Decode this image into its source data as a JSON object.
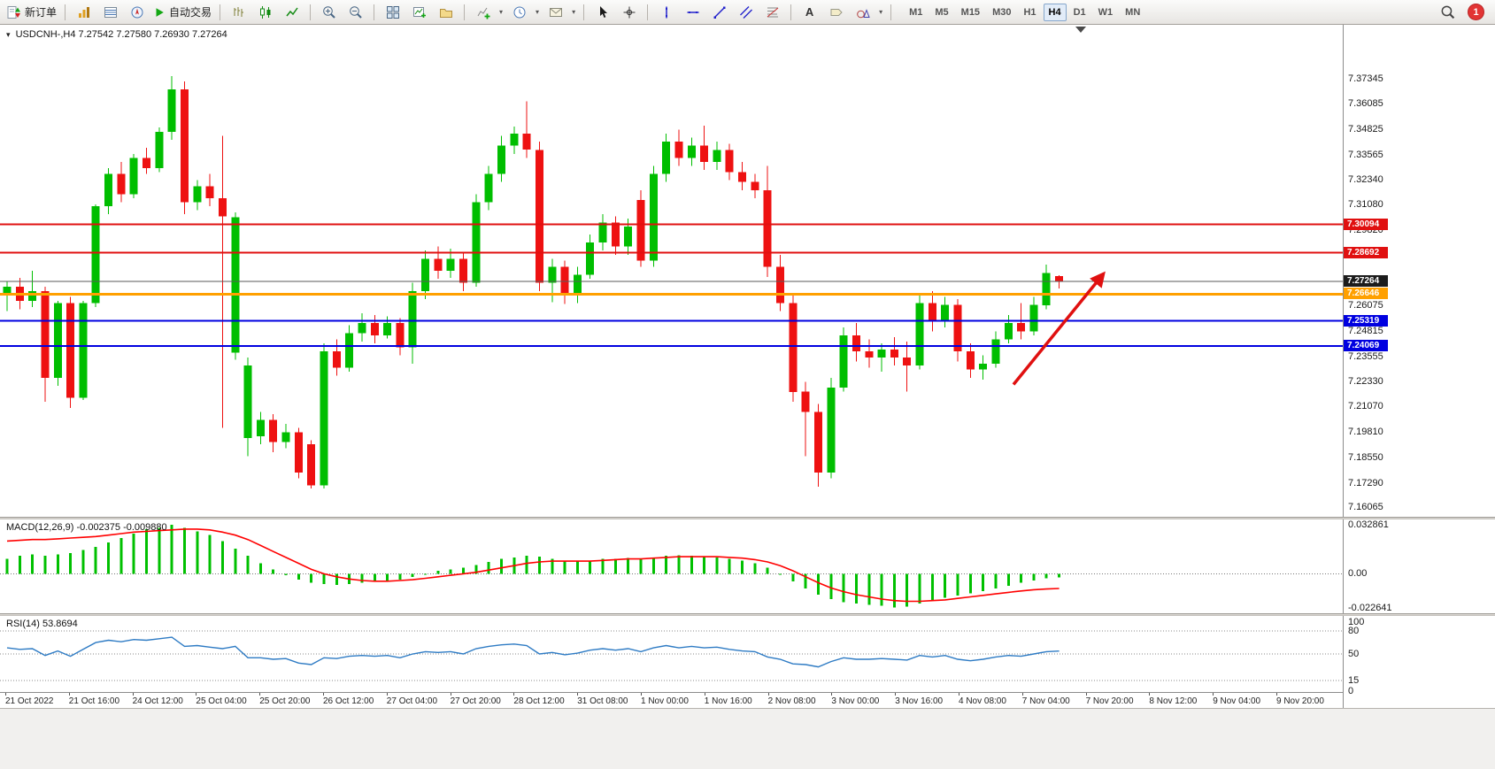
{
  "toolbar": {
    "new_order_label": "新订单",
    "autotrading_label": "自动交易",
    "text_tool_label": "A",
    "timeframes": [
      "M1",
      "M5",
      "M15",
      "M30",
      "H1",
      "H4",
      "D1",
      "W1",
      "MN"
    ],
    "active_timeframe": "H4",
    "notification_count": "1"
  },
  "chart": {
    "symbol": "USDCNH-,H4",
    "ohlc_text": "7.27542 7.27580 7.26930 7.27264"
  },
  "chart_data": {
    "type": "candlestick",
    "symbol": "USDCNH",
    "timeframe": "H4",
    "colors": {
      "up": "#00BE00",
      "down": "#EE1111",
      "background": "#FFFFFF",
      "macd_histogram": "#00C000",
      "macd_signal": "#FF0000",
      "rsi_line": "#2E7BC4"
    },
    "price_axis": {
      "min": 7.156,
      "max": 7.4,
      "ticks": [
        "7.37345",
        "7.36085",
        "7.34825",
        "7.33565",
        "7.32340",
        "7.31080",
        "7.29820",
        "7.26075",
        "7.24815",
        "7.23555",
        "7.22330",
        "7.21070",
        "7.19810",
        "7.18550",
        "7.17290",
        "7.16065"
      ]
    },
    "time_labels": [
      "21 Oct 2022",
      "21 Oct 16:00",
      "24 Oct 12:00",
      "25 Oct 04:00",
      "25 Oct 20:00",
      "26 Oct 12:00",
      "27 Oct 04:00",
      "27 Oct 20:00",
      "28 Oct 12:00",
      "31 Oct 08:00",
      "1 Nov 00:00",
      "1 Nov 16:00",
      "2 Nov 08:00",
      "3 Nov 00:00",
      "3 Nov 16:00",
      "4 Nov 08:00",
      "7 Nov 04:00",
      "7 Nov 20:00",
      "8 Nov 12:00",
      "9 Nov 04:00",
      "9 Nov 20:00"
    ],
    "candles": [
      [
        7.266,
        7.273,
        7.258,
        7.27
      ],
      [
        7.27,
        7.2745,
        7.259,
        7.263
      ],
      [
        7.263,
        7.278,
        7.26,
        7.268
      ],
      [
        7.268,
        7.27,
        7.213,
        7.225
      ],
      [
        7.225,
        7.263,
        7.221,
        7.262
      ],
      [
        7.262,
        7.265,
        7.21,
        7.215
      ],
      [
        7.215,
        7.263,
        7.214,
        7.262
      ],
      [
        7.262,
        7.311,
        7.26,
        7.31
      ],
      [
        7.31,
        7.329,
        7.306,
        7.326
      ],
      [
        7.326,
        7.332,
        7.312,
        7.316
      ],
      [
        7.316,
        7.336,
        7.314,
        7.334
      ],
      [
        7.334,
        7.339,
        7.326,
        7.329
      ],
      [
        7.329,
        7.349,
        7.327,
        7.347
      ],
      [
        7.347,
        7.3745,
        7.343,
        7.368
      ],
      [
        7.368,
        7.372,
        7.306,
        7.312
      ],
      [
        7.312,
        7.323,
        7.308,
        7.32
      ],
      [
        7.32,
        7.326,
        7.31,
        7.314
      ],
      [
        7.314,
        7.345,
        7.2,
        7.305
      ],
      [
        7.2375,
        7.307,
        7.234,
        7.3046
      ],
      [
        7.195,
        7.235,
        7.186,
        7.231
      ],
      [
        7.196,
        7.208,
        7.192,
        7.204
      ],
      [
        7.204,
        7.207,
        7.188,
        7.193
      ],
      [
        7.193,
        7.202,
        7.19,
        7.198
      ],
      [
        7.198,
        7.2,
        7.175,
        7.178
      ],
      [
        7.192,
        7.194,
        7.17,
        7.1715
      ],
      [
        7.1715,
        7.242,
        7.17,
        7.238
      ],
      [
        7.238,
        7.244,
        7.226,
        7.23
      ],
      [
        7.23,
        7.251,
        7.228,
        7.247
      ],
      [
        7.247,
        7.257,
        7.243,
        7.252
      ],
      [
        7.252,
        7.256,
        7.242,
        7.246
      ],
      [
        7.246,
        7.2555,
        7.2445,
        7.252
      ],
      [
        7.252,
        7.2545,
        7.236,
        7.24
      ],
      [
        7.24,
        7.272,
        7.232,
        7.268
      ],
      [
        7.268,
        7.288,
        7.264,
        7.284
      ],
      [
        7.284,
        7.29,
        7.274,
        7.278
      ],
      [
        7.278,
        7.289,
        7.2745,
        7.284
      ],
      [
        7.284,
        7.287,
        7.268,
        7.272
      ],
      [
        7.272,
        7.316,
        7.27,
        7.312
      ],
      [
        7.312,
        7.33,
        7.308,
        7.326
      ],
      [
        7.326,
        7.345,
        7.322,
        7.34
      ],
      [
        7.34,
        7.3495,
        7.336,
        7.346
      ],
      [
        7.346,
        7.362,
        7.334,
        7.338
      ],
      [
        7.338,
        7.342,
        7.268,
        7.272
      ],
      [
        7.272,
        7.284,
        7.2625,
        7.28
      ],
      [
        7.28,
        7.283,
        7.2615,
        7.266
      ],
      [
        7.266,
        7.28,
        7.262,
        7.276
      ],
      [
        7.276,
        7.296,
        7.274,
        7.292
      ],
      [
        7.292,
        7.306,
        7.288,
        7.302
      ],
      [
        7.302,
        7.305,
        7.286,
        7.29
      ],
      [
        7.29,
        7.304,
        7.286,
        7.3
      ],
      [
        7.313,
        7.318,
        7.28,
        7.283
      ],
      [
        7.283,
        7.33,
        7.28,
        7.326
      ],
      [
        7.326,
        7.346,
        7.322,
        7.342
      ],
      [
        7.342,
        7.348,
        7.33,
        7.334
      ],
      [
        7.334,
        7.344,
        7.33,
        7.34
      ],
      [
        7.34,
        7.35,
        7.328,
        7.332
      ],
      [
        7.332,
        7.342,
        7.328,
        7.338
      ],
      [
        7.338,
        7.341,
        7.323,
        7.327
      ],
      [
        7.327,
        7.332,
        7.318,
        7.322
      ],
      [
        7.322,
        7.326,
        7.314,
        7.318
      ],
      [
        7.318,
        7.33,
        7.275,
        7.28
      ],
      [
        7.28,
        7.286,
        7.258,
        7.262
      ],
      [
        7.262,
        7.266,
        7.213,
        7.218
      ],
      [
        7.218,
        7.223,
        7.186,
        7.208
      ],
      [
        7.208,
        7.212,
        7.171,
        7.178
      ],
      [
        7.178,
        7.225,
        7.175,
        7.22
      ],
      [
        7.22,
        7.25,
        7.218,
        7.246
      ],
      [
        7.246,
        7.252,
        7.233,
        7.238
      ],
      [
        7.238,
        7.244,
        7.23,
        7.235
      ],
      [
        7.235,
        7.242,
        7.228,
        7.239
      ],
      [
        7.239,
        7.245,
        7.231,
        7.235
      ],
      [
        7.235,
        7.243,
        7.218,
        7.231
      ],
      [
        7.231,
        7.266,
        7.229,
        7.262
      ],
      [
        7.262,
        7.268,
        7.248,
        7.253
      ],
      [
        7.253,
        7.265,
        7.25,
        7.261
      ],
      [
        7.261,
        7.264,
        7.233,
        7.238
      ],
      [
        7.238,
        7.242,
        7.225,
        7.229
      ],
      [
        7.229,
        7.236,
        7.224,
        7.232
      ],
      [
        7.232,
        7.248,
        7.23,
        7.244
      ],
      [
        7.244,
        7.256,
        7.242,
        7.252
      ],
      [
        7.252,
        7.262,
        7.244,
        7.248
      ],
      [
        7.248,
        7.265,
        7.246,
        7.261
      ],
      [
        7.261,
        7.281,
        7.259,
        7.277
      ],
      [
        7.27542,
        7.2758,
        7.2693,
        7.27264
      ]
    ],
    "levels": [
      {
        "price": 7.30094,
        "label": "7.30094",
        "color": "#E01010",
        "width": 2
      },
      {
        "price": 7.28692,
        "label": "7.28692",
        "color": "#E01010",
        "width": 2
      },
      {
        "price": 7.27264,
        "label": "7.27264",
        "color": "#5A5A5A",
        "width": 1,
        "box_color": "#1C1C1C"
      },
      {
        "price": 7.26646,
        "label": "7.26646",
        "color": "#FFA000",
        "width": 3
      },
      {
        "price": 7.25319,
        "label": "7.25319",
        "color": "#0000E0",
        "width": 2
      },
      {
        "price": 7.24069,
        "label": "7.24069",
        "color": "#0000E0",
        "width": 2
      }
    ],
    "arrow": {
      "bar_from": 79.4,
      "price_from": 7.2216,
      "bar_to": 86.5,
      "price_to": 7.2765,
      "color": "#E01010"
    },
    "indicators": {
      "macd": {
        "label": "MACD(12,26,9)",
        "values_text": "-0.002375 -0.009880",
        "axis": [
          "0.032861",
          "0.00",
          "-0.022641"
        ],
        "range": [
          -0.0265,
          0.0365
        ],
        "histogram": [
          0.01,
          0.012,
          0.013,
          0.012,
          0.013,
          0.014,
          0.016,
          0.018,
          0.021,
          0.024,
          0.027,
          0.03,
          0.031,
          0.0329,
          0.031,
          0.0285,
          0.026,
          0.022,
          0.017,
          0.012,
          0.007,
          0.003,
          -0.001,
          -0.004,
          -0.006,
          -0.007,
          -0.0075,
          -0.007,
          -0.006,
          -0.005,
          -0.0045,
          -0.004,
          -0.002,
          0.0,
          0.002,
          0.003,
          0.004,
          0.006,
          0.008,
          0.01,
          0.011,
          0.012,
          0.0115,
          0.01,
          0.009,
          0.0085,
          0.009,
          0.01,
          0.01,
          0.0105,
          0.01,
          0.011,
          0.012,
          0.0125,
          0.012,
          0.0115,
          0.011,
          0.01,
          0.009,
          0.007,
          0.004,
          0.0,
          -0.005,
          -0.01,
          -0.014,
          -0.017,
          -0.019,
          -0.02,
          -0.021,
          -0.0215,
          -0.0226,
          -0.022,
          -0.02,
          -0.018,
          -0.016,
          -0.0145,
          -0.013,
          -0.0115,
          -0.01,
          -0.008,
          -0.006,
          -0.0045,
          -0.003,
          -0.002375
        ],
        "signal": [
          0.022,
          0.0225,
          0.023,
          0.023,
          0.0235,
          0.024,
          0.0245,
          0.025,
          0.026,
          0.027,
          0.028,
          0.0285,
          0.029,
          0.0295,
          0.03,
          0.03,
          0.0295,
          0.028,
          0.026,
          0.023,
          0.019,
          0.015,
          0.011,
          0.007,
          0.003,
          0.0,
          -0.002,
          -0.0035,
          -0.0045,
          -0.005,
          -0.005,
          -0.0045,
          -0.004,
          -0.003,
          -0.002,
          -0.001,
          0.0,
          0.001,
          0.0025,
          0.004,
          0.0055,
          0.007,
          0.008,
          0.0085,
          0.0085,
          0.0085,
          0.0085,
          0.009,
          0.0095,
          0.01,
          0.01,
          0.0105,
          0.011,
          0.0115,
          0.0115,
          0.0115,
          0.0115,
          0.011,
          0.0105,
          0.0095,
          0.008,
          0.0055,
          0.002,
          -0.002,
          -0.006,
          -0.0095,
          -0.012,
          -0.014,
          -0.0155,
          -0.017,
          -0.018,
          -0.0185,
          -0.0185,
          -0.018,
          -0.0175,
          -0.0165,
          -0.0155,
          -0.0145,
          -0.0135,
          -0.0125,
          -0.0115,
          -0.0107,
          -0.0102,
          -0.00988
        ]
      },
      "rsi": {
        "label": "RSI(14)",
        "value_text": "53.8694",
        "axis_labels": [
          "100",
          "80",
          "50",
          "15",
          "0"
        ],
        "levels_dotted": [
          80,
          50,
          15
        ],
        "range": [
          0,
          100
        ],
        "values": [
          58,
          56,
          57,
          48,
          54,
          47,
          56,
          65,
          68,
          66,
          69,
          68,
          70,
          72,
          60,
          61,
          59,
          57,
          60,
          45,
          45,
          43,
          44,
          38,
          36,
          45,
          44,
          47,
          48,
          47,
          48,
          45,
          50,
          53,
          52,
          53,
          50,
          57,
          60,
          62,
          63,
          61,
          50,
          52,
          49,
          51,
          55,
          57,
          55,
          57,
          53,
          58,
          61,
          58,
          60,
          58,
          59,
          56,
          54,
          53,
          46,
          43,
          37,
          36,
          33,
          40,
          45,
          43,
          43,
          44,
          43,
          42,
          48,
          46,
          48,
          43,
          41,
          43,
          46,
          48,
          47,
          50,
          53,
          53.8694
        ]
      }
    }
  }
}
